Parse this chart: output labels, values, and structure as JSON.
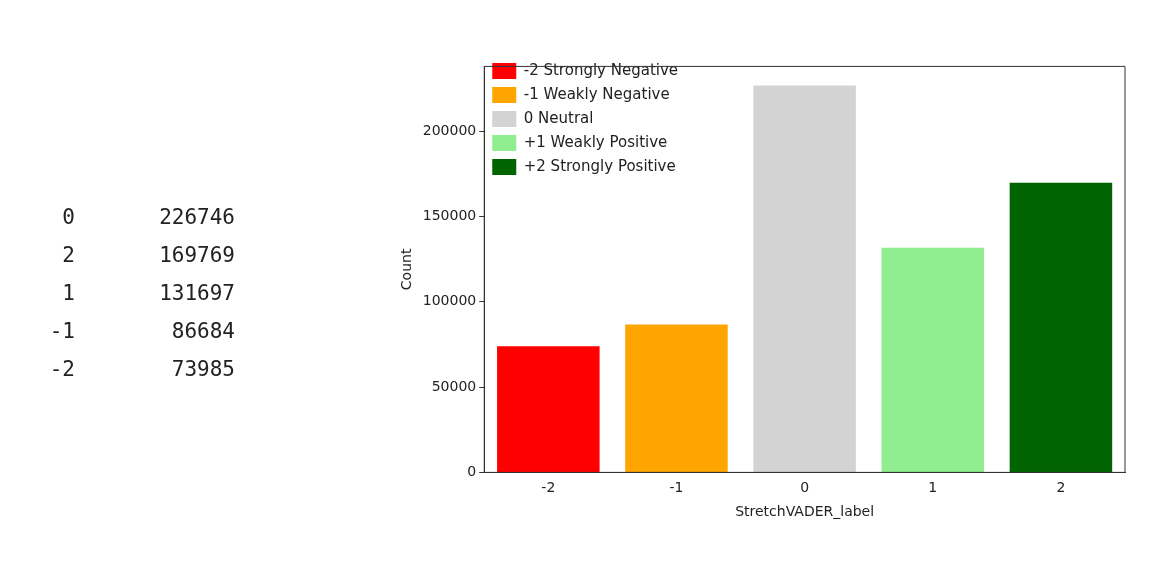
{
  "chart_data": [
    {
      "type": "other",
      "annotations": [
        "0",
        "226746",
        "2",
        "169769",
        "1",
        "131697",
        "-1",
        "86684",
        "-2",
        "73985"
      ]
    },
    {
      "type": "bar",
      "xlabel": "StretchVADER_label",
      "ylabel": "Count",
      "categories": [
        "-2",
        "-1",
        "0",
        "1",
        "2"
      ],
      "series": [
        {
          "name": "-2 Strongly Negative",
          "color": "#ff0000",
          "values": [
            73985,
            null,
            null,
            null,
            null
          ]
        },
        {
          "name": "-1 Weakly Negative",
          "color": "#ffa500",
          "values": [
            null,
            86684,
            null,
            null,
            null
          ]
        },
        {
          "name": "0 Neutral",
          "color": "#d3d3d3",
          "values": [
            null,
            null,
            226746,
            null,
            null
          ]
        },
        {
          "name": "+1 Weakly Positive",
          "color": "#90ee90",
          "values": [
            null,
            null,
            null,
            131697,
            null
          ]
        },
        {
          "name": "+2 Strongly Positive",
          "color": "#006400",
          "values": [
            null,
            null,
            null,
            null,
            169769
          ]
        }
      ],
      "ylim": [
        0,
        238000
      ],
      "yticks": [
        0,
        50000,
        100000,
        150000,
        200000
      ],
      "grid": false,
      "legend": "top left"
    }
  ]
}
